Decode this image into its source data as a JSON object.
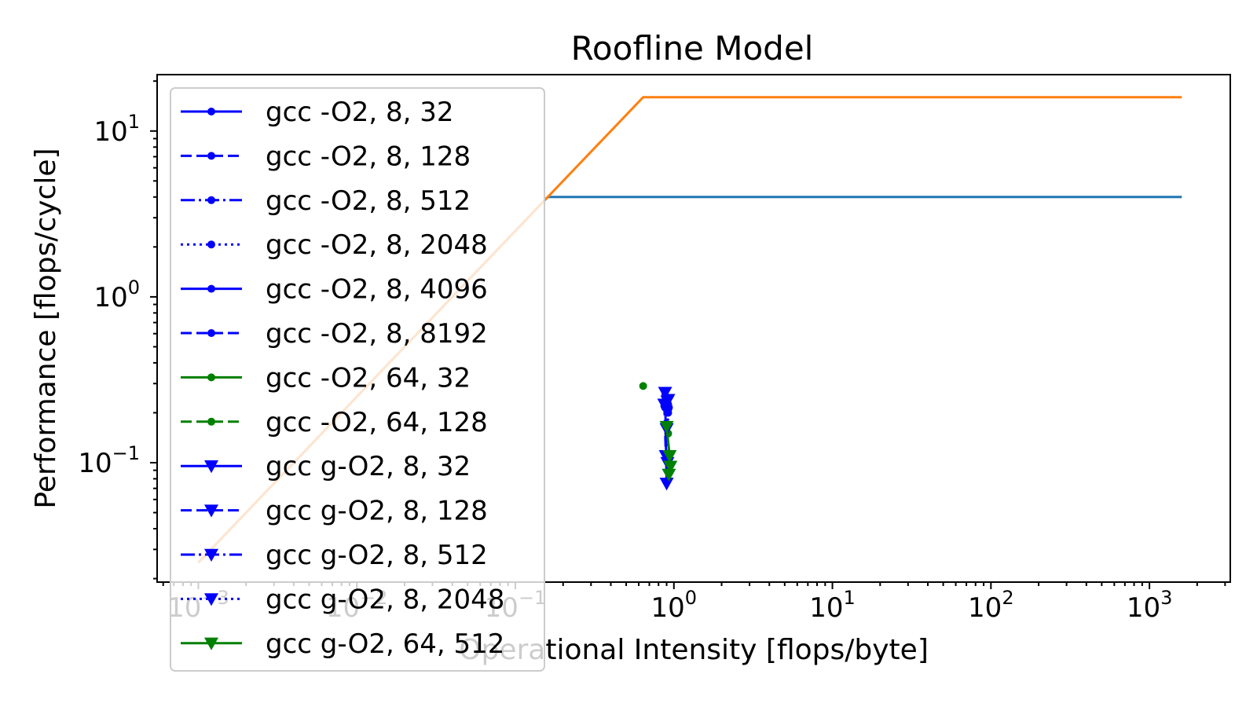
{
  "chart_data": {
    "type": "line",
    "title": "Roofline Model",
    "xlabel": "Operational Intensity [flops/byte]",
    "ylabel": "Performance [flops/cycle]",
    "xscale": "log",
    "yscale": "log",
    "xlim": [
      0.00055,
      3.2
    ],
    "ylim": [
      0.019,
      22
    ],
    "xlim_exp": [
      -3.26,
      3.51
    ],
    "ylim_exp": [
      -1.72,
      1.34
    ],
    "x_ticks": [
      {
        "exp": -3,
        "label": "10^-3"
      },
      {
        "exp": -2,
        "label": "10^-2"
      },
      {
        "exp": -1,
        "label": "10^-1"
      },
      {
        "exp": 0,
        "label": "10^0"
      },
      {
        "exp": 1,
        "label": "10^1"
      },
      {
        "exp": 2,
        "label": "10^2"
      },
      {
        "exp": 3,
        "label": "10^3"
      }
    ],
    "y_ticks": [
      {
        "exp": 1,
        "label": "10^1"
      },
      {
        "exp": 0,
        "label": "10^0"
      },
      {
        "exp": -1,
        "label": "10^-1"
      }
    ],
    "grid": false,
    "legend_position": "upper-left",
    "rooflines": [
      {
        "color": "#1f77b4",
        "points": [
          [
            0.001,
            0.025
          ],
          [
            0.16,
            4.0
          ],
          [
            1600,
            4.0
          ]
        ]
      },
      {
        "color": "#ff7f0e",
        "points": [
          [
            0.001,
            0.025
          ],
          [
            0.64,
            16.0
          ],
          [
            1600,
            16.0
          ]
        ]
      }
    ],
    "series": [
      {
        "name": "gcc -O2, 8, 32",
        "color": "#0000ff",
        "linestyle": "solid",
        "marker": "dot",
        "points": [
          [
            0.88,
            0.215
          ],
          [
            0.9,
            0.235
          ]
        ]
      },
      {
        "name": "gcc -O2, 8, 128",
        "color": "#0000ff",
        "linestyle": "dashed",
        "marker": "dot",
        "points": [
          [
            0.87,
            0.22
          ],
          [
            0.89,
            0.24
          ]
        ]
      },
      {
        "name": "gcc -O2, 8, 512",
        "color": "#0000ff",
        "linestyle": "dashdot",
        "marker": "dot",
        "points": [
          [
            0.9,
            0.245
          ],
          [
            0.92,
            0.21
          ]
        ]
      },
      {
        "name": "gcc -O2, 8, 2048",
        "color": "#0000ff",
        "linestyle": "dotted",
        "marker": "dot",
        "points": [
          [
            0.91,
            0.23
          ],
          [
            0.92,
            0.225
          ]
        ]
      },
      {
        "name": "gcc -O2, 8, 4096",
        "color": "#0000ff",
        "linestyle": "solid",
        "marker": "dot",
        "points": [
          [
            0.89,
            0.22
          ],
          [
            0.91,
            0.24
          ]
        ]
      },
      {
        "name": "gcc -O2, 8, 8192",
        "color": "#0000ff",
        "linestyle": "dashed",
        "marker": "dot",
        "points": [
          [
            0.92,
            0.2
          ],
          [
            0.93,
            0.215
          ]
        ]
      },
      {
        "name": "gcc -O2, 64, 32",
        "color": "#008000",
        "linestyle": "solid",
        "marker": "dot",
        "points": [
          [
            0.64,
            0.29
          ]
        ]
      },
      {
        "name": "gcc -O2, 64, 128",
        "color": "#008000",
        "linestyle": "dashed",
        "marker": "dot",
        "points": [
          [
            0.9,
            0.165
          ],
          [
            0.92,
            0.15
          ]
        ]
      },
      {
        "name": "gcc g-O2, 8, 32",
        "color": "#0000ff",
        "linestyle": "solid",
        "marker": "triangle_down",
        "points": [
          [
            0.88,
            0.265
          ],
          [
            0.9,
            0.075
          ]
        ]
      },
      {
        "name": "gcc g-O2, 8, 128",
        "color": "#0000ff",
        "linestyle": "dashed",
        "marker": "triangle_down",
        "points": [
          [
            0.87,
            0.225
          ],
          [
            0.89,
            0.11
          ]
        ]
      },
      {
        "name": "gcc g-O2, 8, 512",
        "color": "#0000ff",
        "linestyle": "dashdot",
        "marker": "triangle_down",
        "points": [
          [
            0.91,
            0.235
          ],
          [
            0.9,
            0.16
          ]
        ]
      },
      {
        "name": "gcc g-O2, 8, 2048",
        "color": "#0000ff",
        "linestyle": "dotted",
        "marker": "triangle_down",
        "points": [
          [
            0.92,
            0.24
          ],
          [
            0.91,
            0.1
          ]
        ]
      },
      {
        "name": "gcc g-O2, 64, 512",
        "color": "#008000",
        "linestyle": "solid",
        "marker": "triangle_down",
        "points": [
          [
            0.9,
            0.165
          ],
          [
            0.94,
            0.11
          ],
          [
            0.95,
            0.095
          ],
          [
            0.93,
            0.085
          ]
        ]
      }
    ]
  }
}
